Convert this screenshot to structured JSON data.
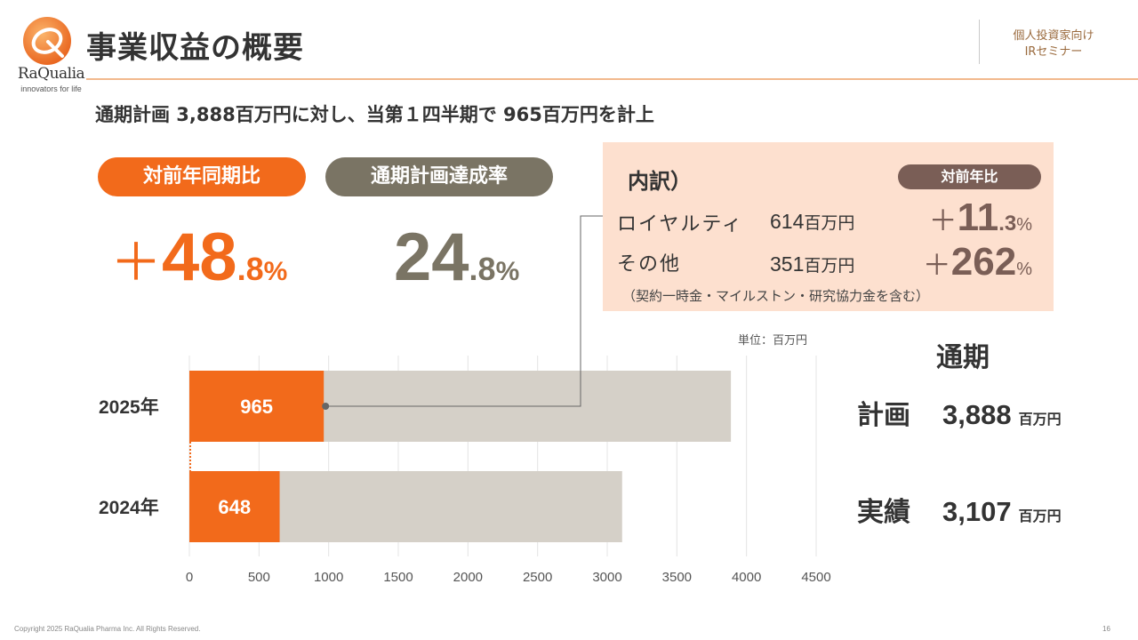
{
  "header": {
    "logo_name": "RaQualia",
    "logo_tagline": "innovators for life",
    "title": "事業収益の概要",
    "audience_line1": "個人投資家向け",
    "audience_line2": "IRセミナー"
  },
  "subtitle": "通期計画 3,888百万円に対し、当第１四半期で 965百万円を計上",
  "yoy": {
    "label": "対前年同期比",
    "sign": "＋",
    "int": "48",
    "dec": ".8",
    "pct": "%"
  },
  "achievement": {
    "label": "通期計画達成率",
    "int": "24",
    "dec": ".8",
    "pct": "%"
  },
  "breakdown": {
    "title": "内訳）",
    "yoy_label": "対前年比",
    "items": [
      {
        "label": "ロイヤルティ",
        "amount": "614",
        "unit": "百万円",
        "sign": "＋",
        "int": "11",
        "dec": ".3",
        "pct": "%"
      },
      {
        "label": "その他",
        "amount": "351",
        "unit": "百万円",
        "sign": "＋",
        "int": "262",
        "dec": "",
        "pct": "%"
      }
    ],
    "note": "（契約一時金・マイルストン・研究協力金を含む）"
  },
  "unit_label": "単位：百万円",
  "chart_data": {
    "type": "bar",
    "orientation": "horizontal",
    "categories": [
      "2025年",
      "2024年"
    ],
    "series": [
      {
        "values": [
          965,
          648
        ]
      },
      {
        "values": [
          3888,
          3107
        ]
      }
    ],
    "xlim": [
      0,
      4500
    ],
    "xticks": [
      0,
      500,
      1000,
      1500,
      2000,
      2500,
      3000,
      3500,
      4000,
      4500
    ],
    "grid": true,
    "colors": {
      "actual": "#f26a1b",
      "full_year": "#d5d0c8",
      "grid": "#e4e4e4",
      "text": "#555555"
    }
  },
  "full_year": {
    "heading": "通期",
    "plan_label": "計画",
    "plan_value": "3,888",
    "actual_label": "実績",
    "actual_value": "3,107",
    "unit": "百万円"
  },
  "footer": {
    "copyright": "Copyright 2025 RaQualia Pharma Inc. All Rights Reserved.",
    "page": "16"
  }
}
